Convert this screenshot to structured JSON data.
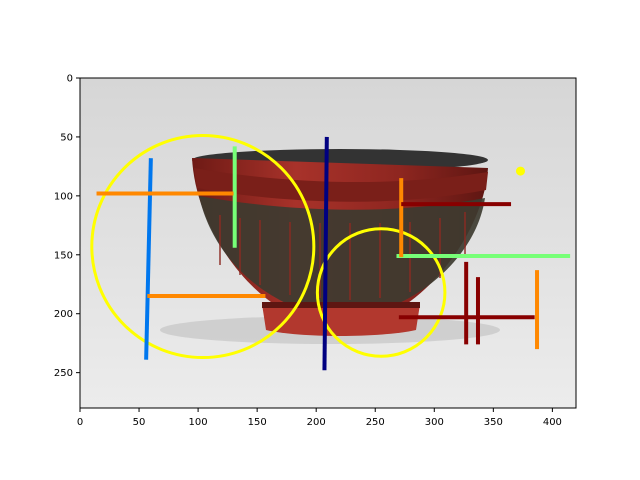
{
  "figure": {
    "x_axis": {
      "range": [
        0,
        420
      ],
      "ticks": [
        0,
        50,
        100,
        150,
        200,
        250,
        300,
        350,
        400
      ]
    },
    "y_axis": {
      "range": [
        280,
        0
      ],
      "ticks": [
        0,
        50,
        100,
        150,
        200,
        250
      ],
      "inverted": true
    },
    "image": {
      "subject": "red-lacquer-bowl-with-carved-characters",
      "colors": {
        "background": "#dedede",
        "lacquer": "#9a2a22",
        "panel": "#3d3b30",
        "rim_interior": "#333333"
      }
    },
    "overlays": {
      "circles": [
        {
          "cx": 104,
          "cy": 143,
          "r": 94,
          "color": "#ffff00"
        },
        {
          "cx": 255,
          "cy": 182,
          "r": 54,
          "color": "#ffff00"
        }
      ],
      "points": [
        {
          "x": 373,
          "y": 79,
          "color": "#ffff00"
        }
      ],
      "segments": [
        {
          "x1": 60,
          "y1": 68,
          "x2": 56,
          "y2": 239,
          "color": "#0077ee"
        },
        {
          "x1": 209,
          "y1": 50,
          "x2": 207,
          "y2": 248,
          "color": "#000080"
        },
        {
          "x1": 131,
          "y1": 58,
          "x2": 131,
          "y2": 144,
          "color": "#77ff77"
        },
        {
          "x1": 268,
          "y1": 151,
          "x2": 415,
          "y2": 151,
          "color": "#77ff77"
        },
        {
          "x1": 14,
          "y1": 98,
          "x2": 130,
          "y2": 98,
          "color": "#ff8800"
        },
        {
          "x1": 57,
          "y1": 185,
          "x2": 157,
          "y2": 185,
          "color": "#ff8800"
        },
        {
          "x1": 272,
          "y1": 85,
          "x2": 272,
          "y2": 152,
          "color": "#ff8800"
        },
        {
          "x1": 387,
          "y1": 163,
          "x2": 387,
          "y2": 230,
          "color": "#ff8800"
        },
        {
          "x1": 272,
          "y1": 107,
          "x2": 365,
          "y2": 107,
          "color": "#880000"
        },
        {
          "x1": 270,
          "y1": 203,
          "x2": 385,
          "y2": 203,
          "color": "#880000"
        },
        {
          "x1": 327,
          "y1": 156,
          "x2": 327,
          "y2": 226,
          "color": "#880000"
        },
        {
          "x1": 337,
          "y1": 169,
          "x2": 337,
          "y2": 226,
          "color": "#880000"
        }
      ]
    }
  }
}
